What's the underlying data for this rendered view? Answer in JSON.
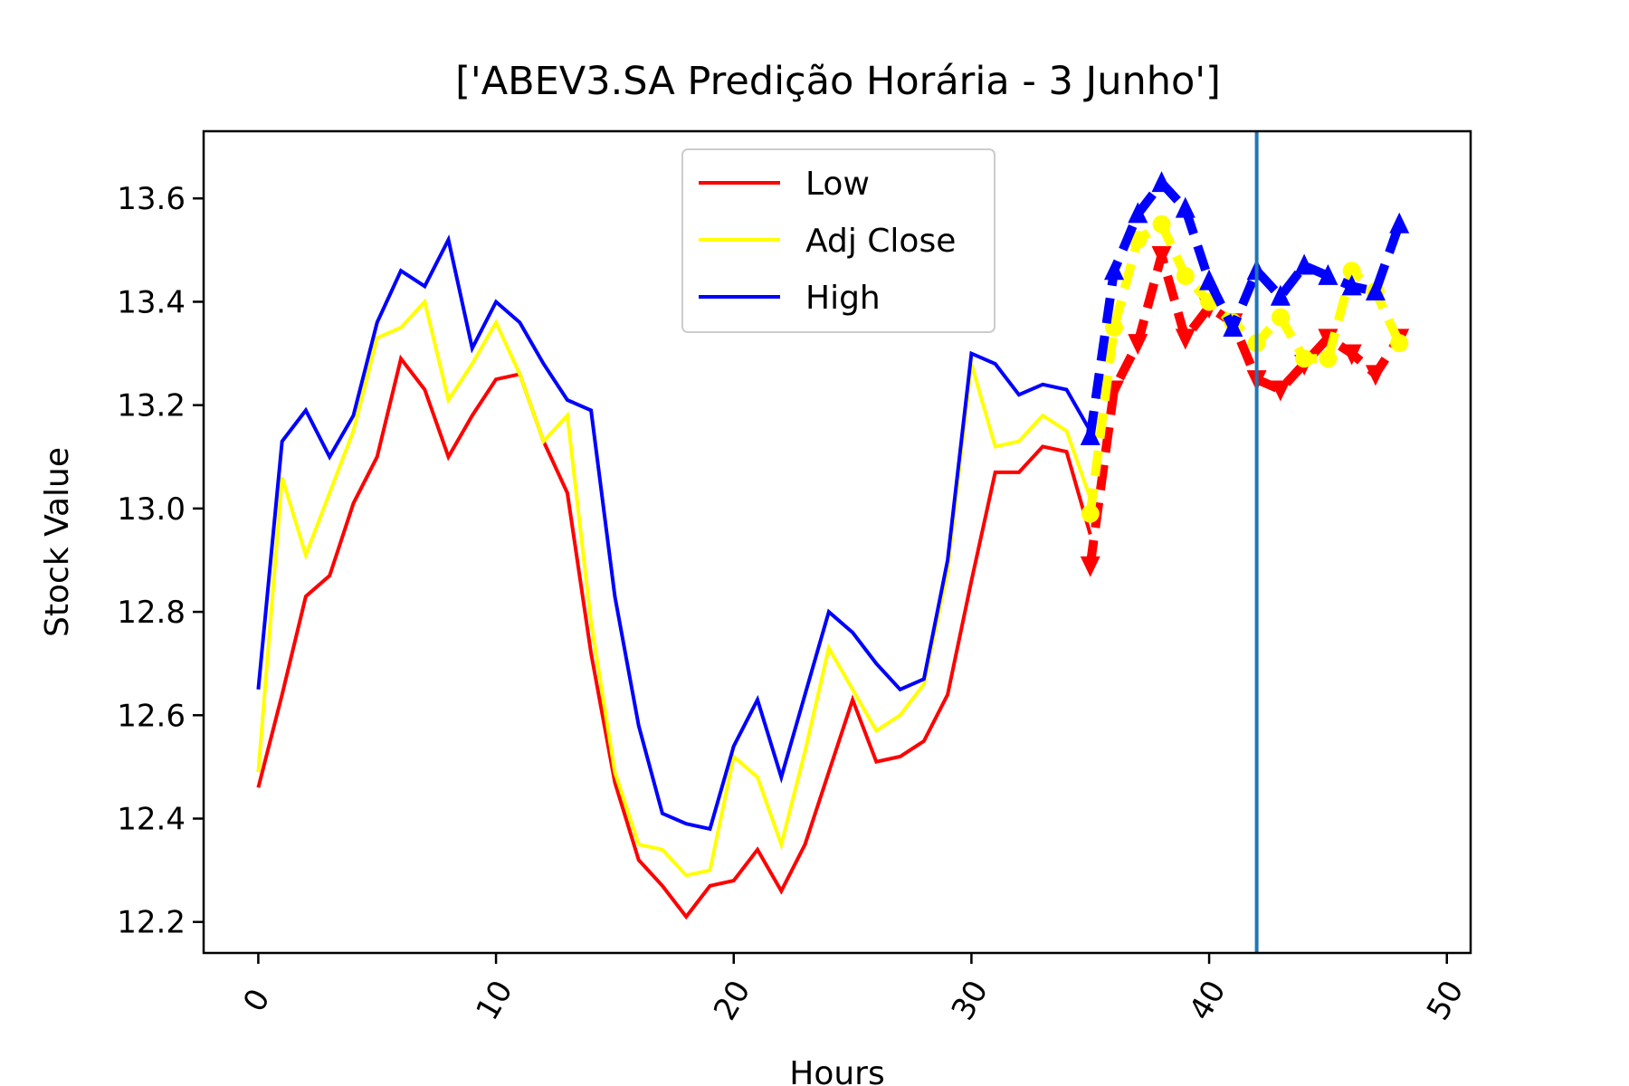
{
  "chart_data": {
    "type": "line",
    "title": "['ABEV3.SA Predição Horária - 3 Junho']",
    "xlabel": "Hours",
    "ylabel": "Stock Value",
    "xlim": [
      -2.3,
      51
    ],
    "ylim": [
      12.14,
      13.73
    ],
    "xticks": [
      0,
      10,
      20,
      30,
      40,
      50
    ],
    "xtick_labels": [
      "0",
      "10",
      "20",
      "30",
      "40",
      "50"
    ],
    "yticks": [
      12.2,
      12.4,
      12.6,
      12.8,
      13.0,
      13.2,
      13.4,
      13.6
    ],
    "ytick_labels": [
      "12.2",
      "12.4",
      "12.6",
      "12.8",
      "13.0",
      "13.2",
      "13.4",
      "13.6"
    ],
    "grid": false,
    "legend_position": "top-center",
    "vertical_line": {
      "x": 42,
      "color": "#1f77b4"
    },
    "series": [
      {
        "name": "Low",
        "color": "#ff0000",
        "x": [
          0,
          1,
          2,
          3,
          4,
          5,
          6,
          7,
          8,
          9,
          10,
          11,
          12,
          13,
          14,
          15,
          16,
          17,
          18,
          19,
          20,
          21,
          22,
          23,
          24,
          25,
          26,
          27,
          28,
          29,
          30,
          31,
          32,
          33,
          34,
          35
        ],
        "values": [
          12.46,
          12.64,
          12.83,
          12.87,
          13.01,
          13.1,
          13.29,
          13.23,
          13.1,
          13.18,
          13.25,
          13.26,
          13.13,
          13.03,
          12.72,
          12.47,
          12.32,
          12.27,
          12.21,
          12.27,
          12.28,
          12.34,
          12.26,
          12.35,
          12.49,
          12.63,
          12.51,
          12.52,
          12.55,
          12.64,
          12.86,
          13.07,
          13.07,
          13.12,
          13.11,
          12.95
        ]
      },
      {
        "name": "Adj Close",
        "color": "#ffff00",
        "x": [
          0,
          1,
          2,
          3,
          4,
          5,
          6,
          7,
          8,
          9,
          10,
          11,
          12,
          13,
          14,
          15,
          16,
          17,
          18,
          19,
          20,
          21,
          22,
          23,
          24,
          25,
          26,
          27,
          28,
          29,
          30,
          31,
          32,
          33,
          34,
          35
        ],
        "values": [
          12.49,
          13.06,
          12.91,
          13.03,
          13.15,
          13.33,
          13.35,
          13.4,
          13.21,
          13.28,
          13.36,
          13.26,
          13.13,
          13.18,
          12.78,
          12.49,
          12.35,
          12.34,
          12.29,
          12.3,
          12.52,
          12.48,
          12.35,
          12.53,
          12.73,
          12.65,
          12.57,
          12.6,
          12.66,
          12.88,
          13.28,
          13.12,
          13.13,
          13.18,
          13.15,
          13.02
        ]
      },
      {
        "name": "High",
        "color": "#0000ff",
        "x": [
          0,
          1,
          2,
          3,
          4,
          5,
          6,
          7,
          8,
          9,
          10,
          11,
          12,
          13,
          14,
          15,
          16,
          17,
          18,
          19,
          20,
          21,
          22,
          23,
          24,
          25,
          26,
          27,
          28,
          29,
          30,
          31,
          32,
          33,
          34,
          35
        ],
        "values": [
          12.65,
          13.13,
          13.19,
          13.1,
          13.18,
          13.36,
          13.46,
          13.43,
          13.52,
          13.31,
          13.4,
          13.36,
          13.28,
          13.21,
          13.19,
          12.83,
          12.58,
          12.41,
          12.39,
          12.38,
          12.54,
          12.63,
          12.48,
          12.64,
          12.8,
          12.76,
          12.7,
          12.65,
          12.67,
          12.9,
          13.3,
          13.28,
          13.22,
          13.24,
          13.23,
          13.15
        ]
      }
    ],
    "prediction_series": [
      {
        "series": "Low",
        "color": "#ff0000",
        "marker": "triangle-down",
        "x": [
          35,
          36,
          37,
          38,
          39,
          40,
          41,
          42,
          43,
          44,
          45,
          46,
          47,
          48
        ],
        "values": [
          12.89,
          13.23,
          13.32,
          13.49,
          13.33,
          13.39,
          13.36,
          13.25,
          13.23,
          13.28,
          13.33,
          13.3,
          13.26,
          13.33
        ]
      },
      {
        "series": "Adj Close",
        "color": "#ffff00",
        "marker": "circle",
        "x": [
          35,
          36,
          37,
          38,
          39,
          40,
          41,
          42,
          43,
          44,
          45,
          46,
          47,
          48
        ],
        "values": [
          12.99,
          13.35,
          13.52,
          13.55,
          13.45,
          13.4,
          13.36,
          13.32,
          13.37,
          13.29,
          13.29,
          13.46,
          13.42,
          13.32
        ]
      },
      {
        "series": "High",
        "color": "#0000ff",
        "marker": "triangle-up",
        "x": [
          35,
          36,
          37,
          38,
          39,
          40,
          41,
          42,
          43,
          44,
          45,
          46,
          47,
          48
        ],
        "values": [
          13.14,
          13.46,
          13.57,
          13.63,
          13.58,
          13.44,
          13.35,
          13.46,
          13.41,
          13.47,
          13.45,
          13.43,
          13.42,
          13.55
        ]
      }
    ]
  }
}
